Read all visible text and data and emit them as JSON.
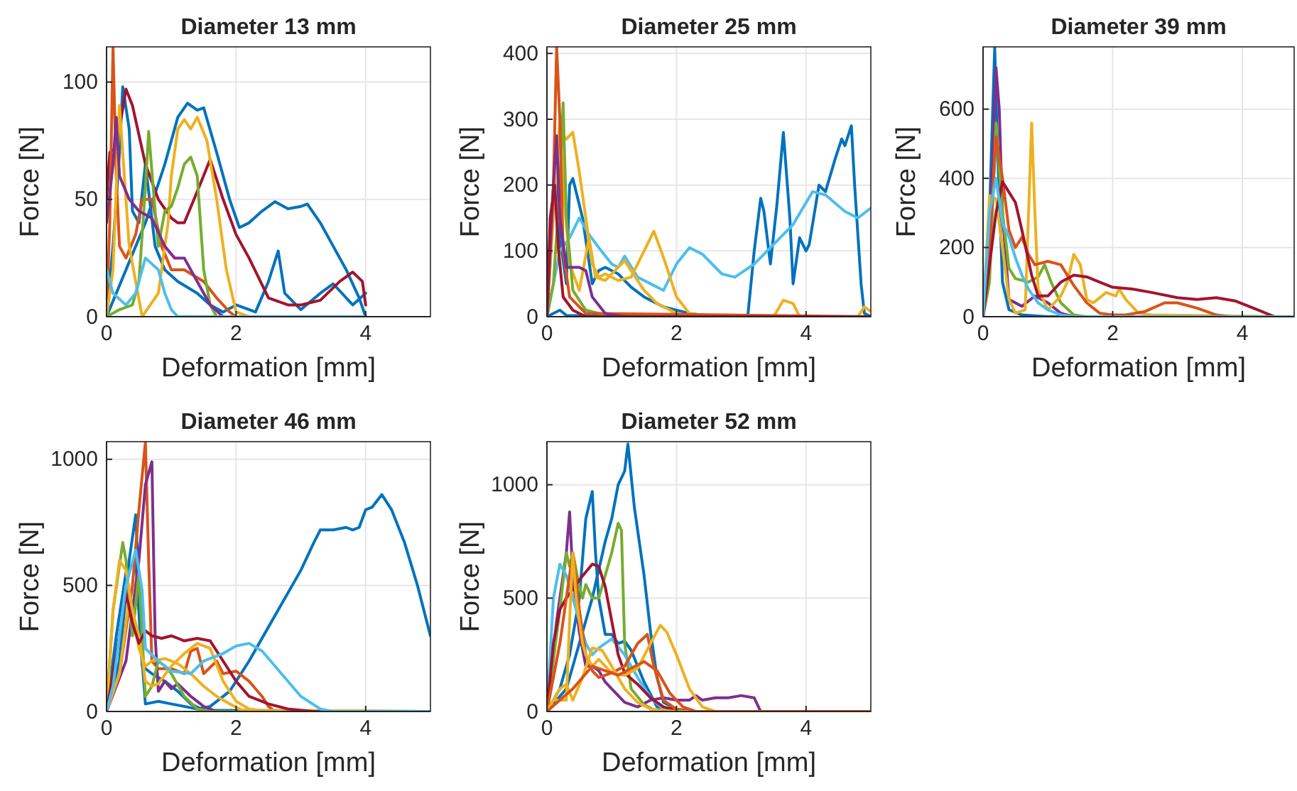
{
  "chart_data": [
    {
      "type": "line",
      "title": "Diameter 13 mm",
      "xlabel": "Deformation [mm]",
      "ylabel": "Force [N]",
      "xlim": [
        0,
        5
      ],
      "xticks": [
        0,
        2,
        4
      ],
      "ylim": [
        0,
        115
      ],
      "yticks": [
        0,
        50,
        100
      ],
      "grid": true,
      "series": [
        {
          "color": "#0072bd",
          "x": [
            0,
            0.3,
            0.6,
            0.9,
            1.1,
            1.25,
            1.4,
            1.5,
            1.7,
            1.9,
            2.05,
            2.2,
            2.4,
            2.6,
            2.8,
            3.0,
            3.1,
            3.3,
            3.5,
            3.7,
            3.9,
            4.0
          ],
          "values": [
            0,
            20,
            40,
            65,
            85,
            91,
            88,
            89,
            70,
            50,
            38,
            40,
            45,
            49,
            46,
            47,
            48,
            40,
            30,
            20,
            8,
            0
          ]
        },
        {
          "color": "#0072bd",
          "x": [
            0,
            0.1,
            0.2,
            0.25,
            0.35,
            0.4,
            0.5,
            0.6,
            0.75,
            0.9,
            1.1,
            1.4,
            1.6,
            1.8,
            2.0,
            2.3,
            2.5,
            2.65,
            2.75,
            3.0,
            3.3,
            3.5,
            3.8,
            4.0
          ],
          "values": [
            0,
            30,
            70,
            98,
            80,
            45,
            40,
            65,
            30,
            20,
            15,
            10,
            5,
            2,
            5,
            2,
            15,
            28,
            10,
            3,
            10,
            14,
            5,
            10
          ]
        },
        {
          "color": "#a2142f",
          "x": [
            0,
            0.05,
            0.15,
            0.3,
            0.4,
            0.6,
            0.8,
            1.0,
            1.1,
            1.2,
            1.35,
            1.6,
            1.8,
            2.0,
            2.2,
            2.5,
            2.8,
            3.0,
            3.3,
            3.6,
            3.8,
            3.95,
            4.0
          ],
          "values": [
            50,
            70,
            72,
            97,
            90,
            65,
            50,
            42,
            40,
            40,
            50,
            67,
            50,
            35,
            25,
            8,
            5,
            5,
            7,
            15,
            19,
            15,
            5
          ]
        },
        {
          "color": "#d95319",
          "x": [
            0,
            0.05,
            0.1,
            0.15,
            0.2,
            0.3,
            0.45,
            0.55,
            0.7,
            0.85,
            1.0,
            1.2,
            1.5,
            1.7,
            1.9,
            2.0,
            4.0
          ],
          "values": [
            0,
            40,
            115,
            60,
            30,
            25,
            35,
            50,
            50,
            30,
            20,
            20,
            15,
            8,
            2,
            0,
            0
          ]
        },
        {
          "color": "#edb120",
          "x": [
            0,
            0.1,
            0.2,
            0.25,
            0.35,
            0.45,
            0.55,
            0.8,
            0.95,
            1.0,
            1.1,
            1.2,
            1.3,
            1.4,
            1.55,
            1.7,
            1.85,
            2.0,
            2.2,
            4.0
          ],
          "values": [
            0,
            20,
            90,
            70,
            30,
            15,
            0,
            10,
            40,
            60,
            80,
            84,
            80,
            85,
            75,
            50,
            20,
            2,
            0,
            0
          ]
        },
        {
          "color": "#77ac30",
          "x": [
            0,
            0.2,
            0.4,
            0.5,
            0.6,
            0.65,
            0.75,
            0.8,
            0.9,
            1.0,
            1.1,
            1.2,
            1.3,
            1.4,
            1.5,
            1.6,
            1.7,
            4.0
          ],
          "values": [
            0,
            3,
            5,
            15,
            55,
            79,
            45,
            30,
            45,
            47,
            55,
            65,
            68,
            60,
            20,
            5,
            0,
            0
          ]
        },
        {
          "color": "#7e2f8e",
          "x": [
            0,
            0.1,
            0.15,
            0.2,
            0.35,
            0.5,
            0.7,
            0.9,
            1.05,
            1.2,
            1.4,
            1.6,
            1.8,
            4.0
          ],
          "values": [
            40,
            65,
            85,
            60,
            50,
            45,
            42,
            30,
            25,
            25,
            15,
            5,
            0,
            0
          ]
        },
        {
          "color": "#4dbeee",
          "x": [
            0,
            0.1,
            0.3,
            0.45,
            0.6,
            0.8,
            0.9,
            1.0,
            1.1,
            4.0
          ],
          "values": [
            20,
            10,
            5,
            10,
            25,
            20,
            10,
            3,
            0,
            0
          ]
        }
      ]
    },
    {
      "type": "line",
      "title": "Diameter 25 mm",
      "xlabel": "Deformation [mm]",
      "ylabel": "Force [N]",
      "xlim": [
        0,
        5
      ],
      "xticks": [
        0,
        2,
        4
      ],
      "ylim": [
        0,
        410
      ],
      "yticks": [
        0,
        100,
        200,
        300,
        400
      ],
      "grid": true,
      "series": [
        {
          "color": "#0072bd",
          "x": [
            0,
            0.2,
            0.3,
            2.9,
            3.1,
            3.2,
            3.3,
            3.35,
            3.45,
            3.55,
            3.65,
            3.75,
            3.8,
            3.9,
            4.0,
            4.05,
            4.2,
            4.3,
            4.45,
            4.55,
            4.6,
            4.7,
            4.75,
            4.85,
            4.9,
            5.0
          ],
          "values": [
            0,
            10,
            2,
            0,
            0,
            100,
            180,
            160,
            80,
            170,
            280,
            150,
            50,
            120,
            100,
            110,
            200,
            190,
            240,
            270,
            260,
            290,
            200,
            50,
            5,
            0
          ]
        },
        {
          "color": "#0072bd",
          "x": [
            0,
            0.1,
            0.15,
            0.2,
            0.3,
            0.35,
            0.4,
            0.55,
            0.7,
            0.8,
            0.9,
            1.1,
            1.3,
            1.5,
            1.8,
            2.2,
            2.6,
            5.0
          ],
          "values": [
            0,
            180,
            250,
            120,
            50,
            200,
            210,
            150,
            50,
            70,
            75,
            65,
            45,
            30,
            15,
            5,
            0,
            0
          ]
        },
        {
          "color": "#4dbeee",
          "x": [
            0,
            0.2,
            0.35,
            0.5,
            0.65,
            0.8,
            1.0,
            1.1,
            1.2,
            1.4,
            1.6,
            1.8,
            2.0,
            2.2,
            2.4,
            2.7,
            2.9,
            3.2,
            3.5,
            3.8,
            4.1,
            4.3,
            4.6,
            4.8,
            5.0
          ],
          "values": [
            0,
            100,
            120,
            150,
            125,
            105,
            80,
            75,
            92,
            60,
            50,
            40,
            80,
            105,
            95,
            65,
            60,
            80,
            110,
            140,
            190,
            185,
            160,
            150,
            165
          ]
        },
        {
          "color": "#edb120",
          "x": [
            0,
            0.1,
            0.2,
            0.3,
            0.4,
            0.5,
            0.6,
            0.7,
            0.8,
            0.9,
            1.1,
            1.3,
            1.5,
            1.65,
            1.8,
            2.0,
            2.2,
            2.5,
            3.5,
            3.65,
            3.8,
            3.9,
            4.8,
            4.9,
            5.0
          ],
          "values": [
            0,
            200,
            280,
            270,
            280,
            220,
            150,
            80,
            60,
            65,
            55,
            60,
            100,
            130,
            90,
            30,
            5,
            0,
            0,
            25,
            20,
            0,
            0,
            15,
            8
          ]
        },
        {
          "color": "#edb120",
          "x": [
            0,
            0.1,
            0.2,
            0.25,
            0.35,
            0.5,
            0.65,
            0.75,
            0.9,
            1.2,
            1.3,
            1.5,
            1.7,
            2.0,
            2.3,
            5.0
          ],
          "values": [
            0,
            150,
            300,
            200,
            80,
            40,
            120,
            60,
            55,
            85,
            70,
            40,
            20,
            5,
            0,
            0
          ]
        },
        {
          "color": "#77ac30",
          "x": [
            0,
            0.1,
            0.2,
            0.25,
            0.3,
            0.4,
            0.6,
            1.0,
            5.0
          ],
          "values": [
            0,
            50,
            200,
            325,
            150,
            40,
            10,
            0,
            0
          ]
        },
        {
          "color": "#d95319",
          "x": [
            0,
            0.1,
            0.15,
            0.2,
            0.25,
            0.35,
            0.6,
            5.0
          ],
          "values": [
            0,
            200,
            410,
            300,
            100,
            30,
            5,
            0
          ]
        },
        {
          "color": "#7e2f8e",
          "x": [
            0,
            0.1,
            0.15,
            0.2,
            0.3,
            0.5,
            0.6,
            0.7,
            0.9,
            1.2,
            5.0
          ],
          "values": [
            0,
            200,
            275,
            150,
            75,
            75,
            70,
            30,
            5,
            0,
            0
          ]
        },
        {
          "color": "#a2142f",
          "x": [
            0,
            0.05,
            0.12,
            0.18,
            0.25,
            0.4,
            0.6,
            5.0
          ],
          "values": [
            0,
            150,
            200,
            100,
            30,
            10,
            0,
            0
          ]
        }
      ]
    },
    {
      "type": "line",
      "title": "Diameter 39 mm",
      "xlabel": "Deformation [mm]",
      "ylabel": "Force [N]",
      "xlim": [
        0,
        4.8
      ],
      "xticks": [
        0,
        2,
        4
      ],
      "ylim": [
        0,
        780
      ],
      "yticks": [
        0,
        200,
        400,
        600
      ],
      "grid": true,
      "series": [
        {
          "color": "#0072bd",
          "x": [
            0,
            0.1,
            0.18,
            0.22,
            0.3,
            0.4,
            0.6,
            1.0,
            4.8
          ],
          "values": [
            0,
            300,
            780,
            500,
            100,
            20,
            5,
            0,
            0
          ]
        },
        {
          "color": "#7e2f8e",
          "x": [
            0,
            0.1,
            0.2,
            0.25,
            0.3,
            0.4,
            0.6,
            0.8,
            1.0,
            1.2,
            1.4,
            4.8
          ],
          "values": [
            0,
            200,
            720,
            600,
            300,
            50,
            30,
            60,
            40,
            10,
            0,
            0
          ]
        },
        {
          "color": "#77ac30",
          "x": [
            0,
            0.1,
            0.2,
            0.3,
            0.4,
            0.5,
            0.7,
            0.85,
            0.95,
            1.05,
            1.2,
            1.4,
            1.6,
            4.8
          ],
          "values": [
            0,
            100,
            560,
            300,
            140,
            110,
            100,
            115,
            150,
            100,
            40,
            5,
            0,
            0
          ]
        },
        {
          "color": "#edb120",
          "x": [
            0,
            0.1,
            0.2,
            0.3,
            0.4,
            0.5,
            0.65,
            0.75,
            0.8,
            0.85,
            1.0,
            1.2,
            1.3,
            1.4,
            1.5,
            1.6,
            1.7,
            1.9,
            2.05,
            2.1,
            2.2,
            2.4,
            2.6,
            4.8
          ],
          "values": [
            0,
            350,
            340,
            200,
            50,
            10,
            20,
            560,
            300,
            80,
            20,
            60,
            100,
            180,
            150,
            50,
            40,
            70,
            60,
            80,
            50,
            10,
            5,
            0
          ]
        },
        {
          "color": "#d95319",
          "x": [
            0,
            0.1,
            0.2,
            0.3,
            0.4,
            0.5,
            0.6,
            0.7,
            0.8,
            1.0,
            1.2,
            1.4,
            1.6,
            1.8,
            2.0,
            2.2,
            2.5,
            2.8,
            3.0,
            3.3,
            3.6,
            3.8,
            4.8
          ],
          "values": [
            0,
            200,
            520,
            400,
            250,
            200,
            230,
            180,
            150,
            160,
            150,
            90,
            40,
            10,
            5,
            5,
            15,
            40,
            40,
            25,
            5,
            0,
            0
          ]
        },
        {
          "color": "#a2142f",
          "x": [
            0,
            0.1,
            0.2,
            0.3,
            0.4,
            0.5,
            0.6,
            0.75,
            0.85,
            1.0,
            1.2,
            1.4,
            1.6,
            1.8,
            2.0,
            2.3,
            2.6,
            3.0,
            3.3,
            3.6,
            3.9,
            4.1,
            4.3,
            4.5,
            4.8
          ],
          "values": [
            0,
            150,
            300,
            390,
            360,
            330,
            250,
            120,
            60,
            60,
            100,
            120,
            115,
            100,
            85,
            80,
            70,
            55,
            50,
            55,
            45,
            30,
            15,
            0,
            0
          ]
        },
        {
          "color": "#4dbeee",
          "x": [
            0,
            0.1,
            0.2,
            0.3,
            0.4,
            0.5,
            0.6,
            0.7,
            0.85,
            1.0,
            1.2,
            1.4,
            4.8
          ],
          "values": [
            0,
            300,
            400,
            270,
            230,
            170,
            120,
            80,
            40,
            20,
            5,
            0,
            0
          ]
        }
      ]
    },
    {
      "type": "line",
      "title": "Diameter 46 mm",
      "xlabel": "Deformation [mm]",
      "ylabel": "Force [N]",
      "xlim": [
        0,
        5
      ],
      "xticks": [
        0,
        2,
        4
      ],
      "ylim": [
        0,
        1070
      ],
      "yticks": [
        0,
        500,
        1000
      ],
      "grid": true,
      "series": [
        {
          "color": "#0072bd",
          "x": [
            0,
            0.2,
            0.35,
            0.45,
            0.5,
            0.55,
            0.6,
            0.8,
            1.0,
            1.2,
            1.4,
            1.6,
            1.9,
            2.2,
            2.6,
            3.0,
            3.2,
            3.3,
            3.5,
            3.7,
            3.8,
            3.9,
            4.0,
            4.1,
            4.25,
            4.4,
            4.6,
            4.8,
            5.0
          ],
          "values": [
            0,
            200,
            600,
            780,
            500,
            200,
            30,
            40,
            30,
            20,
            10,
            20,
            80,
            200,
            380,
            560,
            670,
            720,
            720,
            730,
            720,
            730,
            800,
            810,
            860,
            800,
            670,
            500,
            300
          ]
        },
        {
          "color": "#0072bd",
          "x": [
            0,
            0.15,
            0.3,
            0.45,
            0.55,
            0.7,
            0.9,
            1.1,
            1.3,
            1.5,
            5.0
          ],
          "values": [
            0,
            300,
            550,
            600,
            180,
            150,
            120,
            80,
            30,
            5,
            0
          ]
        },
        {
          "color": "#d95319",
          "x": [
            0,
            0.2,
            0.4,
            0.5,
            0.6,
            0.65,
            0.7,
            0.8,
            1.0,
            1.2,
            1.3,
            1.4,
            1.5,
            1.7,
            1.8,
            2.0,
            2.2,
            2.3,
            2.4,
            2.5,
            2.6,
            5.0
          ],
          "values": [
            0,
            150,
            500,
            800,
            1070,
            600,
            200,
            170,
            170,
            150,
            240,
            250,
            150,
            200,
            150,
            160,
            120,
            90,
            60,
            20,
            0,
            0
          ]
        },
        {
          "color": "#7e2f8e",
          "x": [
            0,
            0.3,
            0.5,
            0.6,
            0.7,
            0.75,
            0.8,
            0.9,
            1.0,
            1.1,
            1.3,
            1.5,
            1.7,
            5.0
          ],
          "values": [
            0,
            200,
            600,
            900,
            990,
            300,
            80,
            120,
            90,
            110,
            60,
            20,
            0,
            0
          ]
        },
        {
          "color": "#77ac30",
          "x": [
            0,
            0.1,
            0.25,
            0.3,
            0.4,
            0.5,
            0.55,
            0.6,
            0.7,
            0.8,
            0.9,
            1.0,
            1.2,
            1.4,
            1.6,
            5.0
          ],
          "values": [
            0,
            400,
            670,
            600,
            300,
            550,
            300,
            60,
            100,
            200,
            180,
            150,
            60,
            10,
            0,
            0
          ]
        },
        {
          "color": "#edb120",
          "x": [
            0,
            0.1,
            0.2,
            0.3,
            0.4,
            0.5,
            0.6,
            0.7,
            0.9,
            1.1,
            1.3,
            1.5,
            1.7,
            1.9,
            2.1,
            5.0
          ],
          "values": [
            0,
            400,
            600,
            560,
            400,
            250,
            180,
            200,
            210,
            190,
            150,
            100,
            60,
            30,
            5,
            0
          ]
        },
        {
          "color": "#edb120",
          "x": [
            0,
            0.2,
            0.35,
            0.5,
            0.6,
            0.7,
            0.8,
            1.0,
            1.2,
            1.4,
            1.6,
            1.8,
            2.0,
            2.2,
            2.5,
            5.0
          ],
          "values": [
            0,
            150,
            450,
            300,
            120,
            100,
            110,
            180,
            230,
            270,
            250,
            120,
            40,
            10,
            0,
            0
          ]
        },
        {
          "color": "#a2142f",
          "x": [
            0,
            0.2,
            0.3,
            0.4,
            0.5,
            0.6,
            0.7,
            0.85,
            1.0,
            1.2,
            1.4,
            1.6,
            1.8,
            2.0,
            2.2,
            2.5,
            2.8,
            3.2,
            5.0
          ],
          "values": [
            0,
            300,
            470,
            350,
            270,
            320,
            300,
            290,
            300,
            280,
            290,
            280,
            200,
            120,
            60,
            30,
            10,
            0,
            0
          ]
        },
        {
          "color": "#4dbeee",
          "x": [
            0,
            0.1,
            0.3,
            0.45,
            0.55,
            0.6,
            0.8,
            1.0,
            1.3,
            1.5,
            1.8,
            2.0,
            2.2,
            2.4,
            2.7,
            3.0,
            3.3,
            3.5,
            5.0
          ],
          "values": [
            0,
            100,
            500,
            640,
            480,
            250,
            200,
            160,
            150,
            200,
            230,
            260,
            270,
            240,
            150,
            60,
            10,
            0,
            0
          ]
        }
      ]
    },
    {
      "type": "line",
      "title": "Diameter 52 mm",
      "xlabel": "Deformation [mm]",
      "ylabel": "Force [N]",
      "xlim": [
        0,
        5
      ],
      "xticks": [
        0,
        2,
        4
      ],
      "ylim": [
        0,
        1190
      ],
      "yticks": [
        0,
        500,
        1000
      ],
      "grid": true,
      "series": [
        {
          "color": "#0072bd",
          "x": [
            0,
            0.3,
            0.5,
            0.7,
            0.9,
            1.0,
            1.1,
            1.2,
            1.25,
            1.35,
            1.5,
            1.6,
            1.7,
            1.8,
            2.0,
            2.3,
            5.0
          ],
          "values": [
            0,
            100,
            300,
            500,
            750,
            850,
            1000,
            1060,
            1180,
            900,
            600,
            350,
            150,
            40,
            10,
            0,
            0
          ]
        },
        {
          "color": "#0072bd",
          "x": [
            0,
            0.2,
            0.35,
            0.5,
            0.6,
            0.7,
            0.75,
            0.8,
            0.9,
            1.0,
            1.1,
            1.2,
            1.3,
            1.5,
            1.7,
            1.9,
            5.0
          ],
          "values": [
            0,
            100,
            250,
            500,
            850,
            970,
            700,
            500,
            340,
            340,
            300,
            310,
            270,
            130,
            20,
            0,
            0
          ]
        },
        {
          "color": "#7e2f8e",
          "x": [
            0,
            0.15,
            0.3,
            0.35,
            0.4,
            0.5,
            0.6,
            0.7,
            0.8,
            0.9,
            1.0,
            1.2,
            1.4,
            1.6,
            1.8,
            2.0,
            2.2,
            2.3,
            2.4,
            2.6,
            2.8,
            3.0,
            3.2,
            3.3,
            5.0
          ],
          "values": [
            0,
            400,
            700,
            880,
            600,
            350,
            200,
            200,
            180,
            130,
            100,
            40,
            20,
            50,
            60,
            50,
            50,
            70,
            50,
            60,
            60,
            70,
            60,
            0,
            0
          ]
        },
        {
          "color": "#77ac30",
          "x": [
            0,
            0.2,
            0.3,
            0.35,
            0.4,
            0.5,
            0.55,
            0.6,
            0.7,
            0.8,
            0.9,
            1.0,
            1.1,
            1.15,
            1.2,
            1.3,
            1.5,
            1.7,
            5.0
          ],
          "values": [
            0,
            450,
            700,
            640,
            700,
            550,
            500,
            560,
            500,
            500,
            600,
            700,
            830,
            800,
            300,
            100,
            30,
            0,
            0
          ]
        },
        {
          "color": "#4dbeee",
          "x": [
            0,
            0.1,
            0.2,
            0.3,
            0.4,
            0.5,
            0.6,
            0.7,
            0.8,
            0.9,
            1.0,
            1.2,
            1.4,
            1.6,
            1.8,
            2.0,
            5.0
          ],
          "values": [
            0,
            500,
            650,
            600,
            500,
            400,
            300,
            250,
            280,
            300,
            320,
            250,
            150,
            60,
            10,
            0,
            0
          ]
        },
        {
          "color": "#a2142f",
          "x": [
            0,
            0.1,
            0.2,
            0.3,
            0.5,
            0.7,
            0.8,
            0.9,
            1.0,
            1.1,
            1.2,
            1.4,
            1.6,
            1.8,
            2.0,
            2.3,
            5.0
          ],
          "values": [
            0,
            300,
            450,
            500,
            580,
            650,
            640,
            550,
            400,
            250,
            170,
            120,
            60,
            20,
            5,
            0,
            0
          ]
        },
        {
          "color": "#d95319",
          "x": [
            0,
            0.2,
            0.3,
            0.4,
            0.5,
            0.6,
            0.7,
            0.8,
            1.0,
            1.2,
            1.4,
            1.55,
            1.65,
            1.8,
            2.0,
            2.2,
            5.0
          ],
          "values": [
            0,
            300,
            500,
            700,
            450,
            250,
            180,
            150,
            170,
            200,
            300,
            340,
            200,
            50,
            10,
            0,
            0
          ]
        },
        {
          "color": "#edb120",
          "x": [
            0,
            0.1,
            0.3,
            0.35,
            0.4,
            0.45,
            0.55,
            0.6,
            0.7,
            0.8,
            1.0,
            1.2,
            1.4,
            1.6,
            1.75,
            1.85,
            2.0,
            2.2,
            2.4,
            2.6,
            5.0
          ],
          "values": [
            0,
            50,
            50,
            400,
            700,
            500,
            300,
            250,
            200,
            230,
            170,
            160,
            190,
            300,
            380,
            350,
            250,
            100,
            20,
            0,
            0
          ]
        },
        {
          "color": "#edb120",
          "x": [
            0,
            0.2,
            0.3,
            0.4,
            0.55,
            0.7,
            0.85,
            1.0,
            1.2,
            1.4,
            1.6,
            2.0,
            5.0
          ],
          "values": [
            0,
            100,
            120,
            50,
            150,
            280,
            270,
            200,
            100,
            40,
            10,
            0,
            0
          ]
        },
        {
          "color": "#d95319",
          "x": [
            0,
            0.4,
            0.7,
            0.9,
            1.1,
            1.3,
            1.5,
            1.7,
            1.9,
            2.1,
            2.3,
            5.0
          ],
          "values": [
            0,
            100,
            200,
            180,
            160,
            190,
            220,
            180,
            80,
            20,
            0,
            0
          ]
        }
      ]
    }
  ]
}
